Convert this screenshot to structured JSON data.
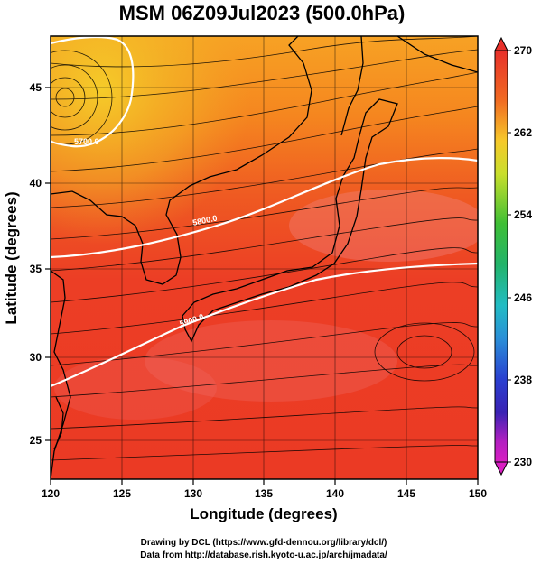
{
  "title": "MSM 06Z09Jul2023 (500.0hPa)",
  "xlabel": "Longitude (degrees)",
  "ylabel": "Latitude (degrees)",
  "x_ticks": [
    "120",
    "125",
    "130",
    "135",
    "140",
    "145",
    "150"
  ],
  "y_ticks": [
    "25",
    "30",
    "35",
    "40",
    "45"
  ],
  "colorbar": {
    "labels": [
      "270",
      "262",
      "254",
      "246",
      "238",
      "230"
    ],
    "min": 230,
    "max": 270
  },
  "contours": [
    {
      "label": "5700.0"
    },
    {
      "label": "5800.0"
    },
    {
      "label": "5900.0"
    }
  ],
  "credits": {
    "line1": "Drawing by DCL (https://www.gfd-dennou.org/library/dcl/)",
    "line2": "Data from http://database.rish.kyoto-u.ac.jp/arch/jmadata/"
  }
}
